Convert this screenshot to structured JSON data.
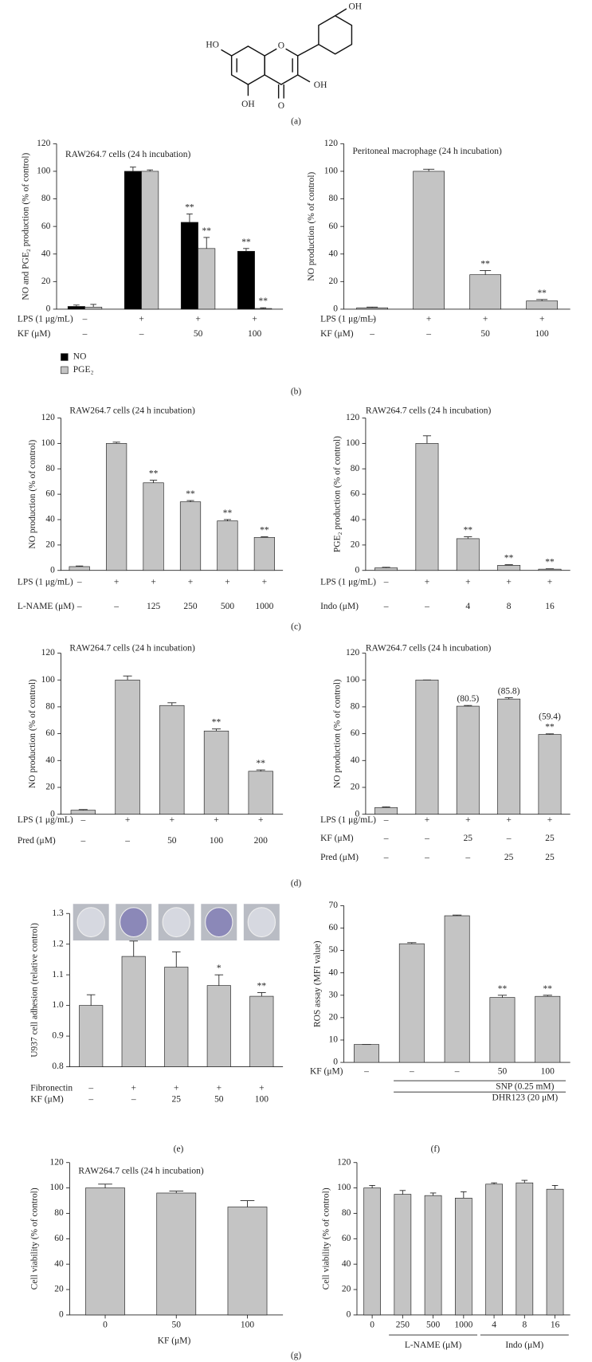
{
  "panel_labels": [
    "(a)",
    "(b)",
    "(c)",
    "(d)",
    "(e)",
    "(f)",
    "(g)"
  ],
  "molecule_labels": [
    "HO",
    "OH",
    "O",
    "OH",
    "O",
    "OH"
  ],
  "chart_data": [
    {
      "type": "bar",
      "title": "RAW264.7 cells (24 h incubation)",
      "ylabel": "NO and PGE₂ production (% of control)",
      "ylim": [
        0,
        120
      ],
      "yticks": [
        0,
        20,
        40,
        60,
        80,
        100,
        120
      ],
      "series": [
        {
          "name": "NO",
          "color": "#000000",
          "values": [
            2,
            100,
            63,
            42
          ],
          "errors": [
            1,
            3,
            6,
            2
          ],
          "significance": [
            null,
            null,
            "**",
            "**"
          ]
        },
        {
          "name": "PGE₂",
          "color": "#c4c4c4",
          "values": [
            1.5,
            100,
            44,
            0.5
          ],
          "errors": [
            2,
            1,
            8,
            0.5
          ],
          "significance": [
            null,
            null,
            "**",
            "**"
          ]
        }
      ],
      "conditions": [
        {
          "label": "LPS (1 μg/mL)",
          "values": [
            "–",
            "+",
            "+",
            "+"
          ]
        },
        {
          "label": "KF (μM)",
          "values": [
            "–",
            "–",
            "50",
            "100"
          ]
        }
      ]
    },
    {
      "type": "bar",
      "title": "Peritoneal macrophage (24 h incubation)",
      "ylabel": "NO production (% of control)",
      "ylim": [
        0,
        120
      ],
      "yticks": [
        0,
        20,
        40,
        60,
        80,
        100,
        120
      ],
      "series": [
        {
          "color": "#c4c4c4",
          "values": [
            1,
            100,
            25,
            6
          ],
          "errors": [
            0.5,
            1.5,
            3,
            1
          ],
          "significance": [
            null,
            null,
            "**",
            "**"
          ]
        }
      ],
      "conditions": [
        {
          "label": "LPS (1 μg/mL)",
          "values": [
            "–",
            "+",
            "+",
            "+"
          ]
        },
        {
          "label": "KF (μM)",
          "values": [
            "–",
            "–",
            "50",
            "100"
          ]
        }
      ]
    },
    {
      "type": "bar",
      "title": "RAW264.7 cells (24 h incubation)",
      "ylabel": "NO production (% of control)",
      "ylim": [
        0,
        120
      ],
      "yticks": [
        0,
        20,
        40,
        60,
        80,
        100,
        120
      ],
      "series": [
        {
          "color": "#c4c4c4",
          "values": [
            3,
            100,
            69,
            54,
            39,
            26
          ],
          "errors": [
            0.5,
            1,
            2,
            1,
            1,
            0.5
          ],
          "significance": [
            null,
            null,
            "**",
            "**",
            "**",
            "**"
          ]
        }
      ],
      "conditions": [
        {
          "label": "LPS (1 μg/mL)",
          "values": [
            "–",
            "+",
            "+",
            "+",
            "+",
            "+"
          ]
        },
        {
          "label": "L-NAME (μM)",
          "values": [
            "–",
            "–",
            "125",
            "250",
            "500",
            "1000"
          ]
        }
      ]
    },
    {
      "type": "bar",
      "title": "RAW264.7 cells (24 h incubation)",
      "ylabel": "PGE₂ production (% of control)",
      "ylim": [
        0,
        120
      ],
      "yticks": [
        0,
        20,
        40,
        60,
        80,
        100,
        120
      ],
      "series": [
        {
          "color": "#c4c4c4",
          "values": [
            2,
            100,
            25,
            4,
            1
          ],
          "errors": [
            0.5,
            6,
            1.5,
            0.5,
            0.3
          ],
          "significance": [
            null,
            null,
            "**",
            "**",
            "**"
          ]
        }
      ],
      "conditions": [
        {
          "label": "LPS (1 μg/mL)",
          "values": [
            "–",
            "+",
            "+",
            "+",
            "+"
          ]
        },
        {
          "label": "Indo (μM)",
          "values": [
            "–",
            "–",
            "4",
            "8",
            "16"
          ]
        }
      ]
    },
    {
      "type": "bar",
      "title": "RAW264.7 cells (24 h incubation)",
      "ylabel": "NO production (% of control)",
      "ylim": [
        0,
        120
      ],
      "yticks": [
        0,
        20,
        40,
        60,
        80,
        100,
        120
      ],
      "series": [
        {
          "color": "#c4c4c4",
          "values": [
            3,
            100,
            81,
            62,
            32
          ],
          "errors": [
            0.5,
            3,
            2,
            1.5,
            1
          ],
          "significance": [
            null,
            null,
            null,
            "**",
            "**"
          ]
        }
      ],
      "conditions": [
        {
          "label": "LPS (1 μg/mL)",
          "values": [
            "–",
            "+",
            "+",
            "+",
            "+"
          ]
        },
        {
          "label": "Pred (μM)",
          "values": [
            "–",
            "–",
            "50",
            "100",
            "200"
          ]
        }
      ]
    },
    {
      "type": "bar",
      "title": "RAW264.7 cells (24 h incubation)",
      "ylabel": "NO production (% of control)",
      "ylim": [
        0,
        120
      ],
      "yticks": [
        0,
        20,
        40,
        60,
        80,
        100,
        120
      ],
      "series": [
        {
          "color": "#c4c4c4",
          "values": [
            5,
            100,
            80.5,
            85.8,
            59.4
          ],
          "errors": [
            0.5,
            0,
            0.5,
            1,
            0.5
          ],
          "value_labels": [
            null,
            null,
            "(80.5)",
            "(85.8)",
            "(59.4)"
          ],
          "significance": [
            null,
            null,
            null,
            null,
            "**"
          ]
        }
      ],
      "conditions": [
        {
          "label": "LPS (1 μg/mL)",
          "values": [
            "–",
            "+",
            "+",
            "+",
            "+"
          ]
        },
        {
          "label": "KF (μM)",
          "values": [
            "–",
            "–",
            "25",
            "–",
            "25"
          ]
        },
        {
          "label": "Pred (μM)",
          "values": [
            "–",
            "–",
            "–",
            "25",
            "25"
          ]
        }
      ]
    },
    {
      "type": "bar",
      "ylabel": "U937 cell adhesion (relative control)",
      "ylim": [
        0.8,
        1.3
      ],
      "yticks": [
        0.8,
        0.9,
        {
          "value": 1,
          "label": "1.0"
        },
        1.1,
        1.2,
        1.3
      ],
      "series": [
        {
          "color": "#c4c4c4",
          "values": [
            1.0,
            1.16,
            1.125,
            1.065,
            1.03
          ],
          "errors": [
            0.035,
            0.05,
            0.05,
            0.035,
            0.012
          ],
          "significance": [
            null,
            null,
            null,
            "*",
            "**"
          ]
        }
      ],
      "conditions": [
        {
          "label": "Fibronectin",
          "values": [
            "–",
            "+",
            "+",
            "+",
            "+"
          ]
        },
        {
          "label": "KF (μM)",
          "values": [
            "–",
            "–",
            "25",
            "50",
            "100"
          ]
        }
      ]
    },
    {
      "type": "bar",
      "ylabel": "ROS assay (MFI value)",
      "ylim": [
        0,
        70
      ],
      "yticks": [
        0,
        10,
        20,
        30,
        40,
        50,
        60,
        70
      ],
      "series": [
        {
          "color": "#c4c4c4",
          "values": [
            8,
            53,
            65.5,
            29,
            29.5
          ],
          "errors": [
            0,
            0.5,
            0.3,
            1,
            0.5
          ],
          "significance": [
            null,
            null,
            null,
            "**",
            "**"
          ]
        }
      ],
      "conditions": [
        {
          "label": "KF (μM)",
          "values": [
            "–",
            "–",
            "–",
            "50",
            "100"
          ]
        }
      ],
      "annotations": [
        "SNP (0.25 mM)",
        "DHR123 (20 μM)"
      ]
    },
    {
      "type": "bar",
      "title": "RAW264.7 cells (24 h incubation)",
      "ylabel": "Cell viability (% of control)",
      "xlabel": "KF (μM)",
      "ylim": [
        0,
        120
      ],
      "yticks": [
        0,
        20,
        40,
        60,
        80,
        100,
        120
      ],
      "categories": [
        "0",
        "50",
        "100"
      ],
      "series": [
        {
          "color": "#c4c4c4",
          "values": [
            100,
            96,
            85
          ],
          "errors": [
            3,
            1.5,
            5
          ]
        }
      ]
    },
    {
      "type": "bar",
      "ylabel": "Cell viability (% of control)",
      "ylim": [
        0,
        120
      ],
      "yticks": [
        0,
        20,
        40,
        60,
        80,
        100,
        120
      ],
      "categories": [
        "0",
        "250",
        "500",
        "1000",
        "4",
        "8",
        "16"
      ],
      "series": [
        {
          "color": "#c4c4c4",
          "values": [
            100,
            95,
            94,
            92,
            103,
            104,
            99
          ],
          "errors": [
            2,
            3,
            2,
            5,
            1,
            2,
            3
          ]
        }
      ],
      "group_labels": [
        "L-NAME (μM)",
        "Indo (μM)"
      ]
    }
  ]
}
